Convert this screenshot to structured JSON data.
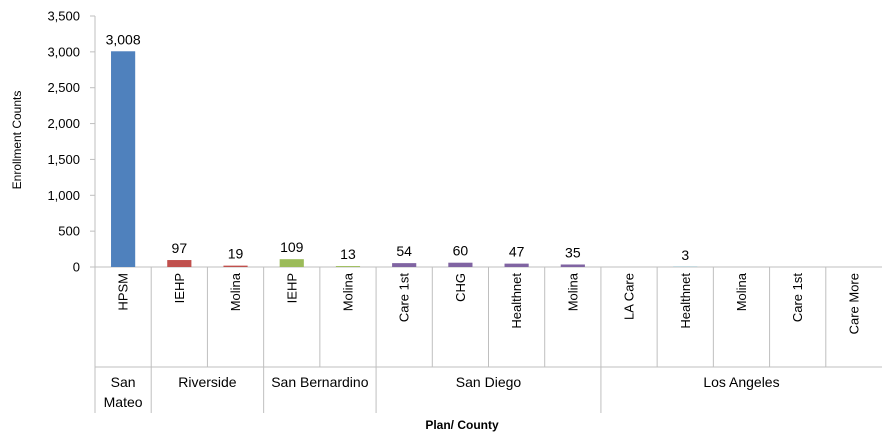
{
  "chart_data": {
    "type": "bar",
    "ylabel": "Enrollment Counts",
    "xlabel": "Plan/ County",
    "ylim": [
      0,
      3500
    ],
    "yticks": [
      0,
      500,
      1000,
      1500,
      2000,
      2500,
      3000,
      3500
    ],
    "ytick_labels": [
      "0",
      "500",
      "1,000",
      "1,500",
      "2,000",
      "2,500",
      "3,000",
      "3,500"
    ],
    "grid": false,
    "legend": "none",
    "groups": [
      {
        "county": "San Mateo",
        "county_lines": [
          "San",
          "Mateo"
        ],
        "bars": [
          {
            "plan": "HPSM",
            "value": 3008,
            "label": "3,008",
            "color": "#4f81bd"
          }
        ]
      },
      {
        "county": "Riverside",
        "county_lines": [
          "Riverside"
        ],
        "bars": [
          {
            "plan": "IEHP",
            "value": 97,
            "label": "97",
            "color": "#c0504d"
          },
          {
            "plan": "Molina",
            "value": 19,
            "label": "19",
            "color": "#c0504d"
          }
        ]
      },
      {
        "county": "San Bernardino",
        "county_lines": [
          "San Bernardino"
        ],
        "bars": [
          {
            "plan": "IEHP",
            "value": 109,
            "label": "109",
            "color": "#9bbb59"
          },
          {
            "plan": "Molina",
            "value": 13,
            "label": "13",
            "color": "#9bbb59"
          }
        ]
      },
      {
        "county": "San Diego",
        "county_lines": [
          "San Diego"
        ],
        "bars": [
          {
            "plan": "Care 1st",
            "value": 54,
            "label": "54",
            "color": "#8064a2"
          },
          {
            "plan": "CHG",
            "value": 60,
            "label": "60",
            "color": "#8064a2"
          },
          {
            "plan": "Healthnet",
            "value": 47,
            "label": "47",
            "color": "#8064a2"
          },
          {
            "plan": "Molina",
            "value": 35,
            "label": "35",
            "color": "#8064a2"
          }
        ]
      },
      {
        "county": "Los Angeles",
        "county_lines": [
          "Los Angeles"
        ],
        "bars": [
          {
            "plan": "LA Care",
            "value": 0,
            "label": "",
            "color": "#4bacc6"
          },
          {
            "plan": "Healthnet",
            "value": 3,
            "label": "3",
            "color": "#4bacc6"
          },
          {
            "plan": "Molina",
            "value": 0,
            "label": "",
            "color": "#4bacc6"
          },
          {
            "plan": "Care 1st",
            "value": 0,
            "label": "",
            "color": "#4bacc6"
          },
          {
            "plan": "Care More",
            "value": 0,
            "label": "",
            "color": "#4bacc6"
          }
        ]
      }
    ]
  }
}
